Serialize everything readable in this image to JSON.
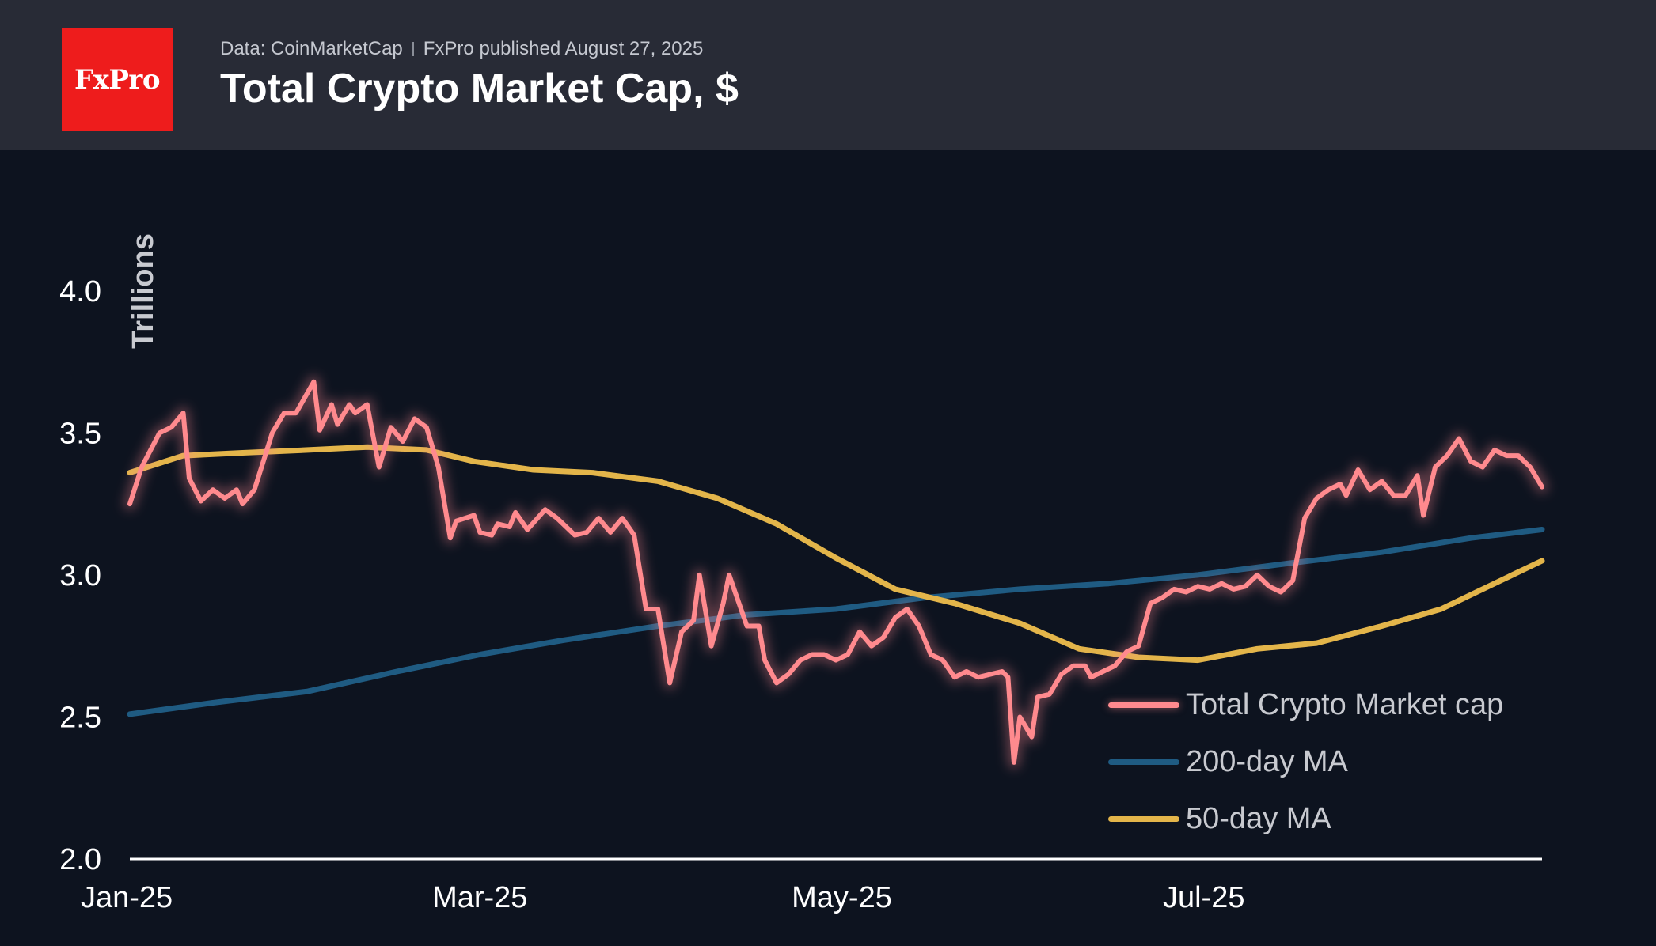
{
  "header": {
    "logo_text": "FxPro",
    "source": "Data: CoinMarketCap",
    "published": "FxPro published August 27, 2025",
    "title": "Total Crypto Market Cap, $"
  },
  "colors": {
    "market_cap": "#ff8a8e",
    "ma200": "#1f5b82",
    "ma50": "#e3b54a",
    "axis": "#ffffff",
    "logo_bg": "#ee1c1c"
  },
  "chart_data": {
    "type": "line",
    "title": "Total Crypto Market Cap, $",
    "ylabel": "Trillions",
    "xlabel": "",
    "ylim": [
      2.0,
      4.2
    ],
    "yticks": [
      2.0,
      2.5,
      3.0,
      3.5,
      4.0
    ],
    "ytick_labels": [
      "2.0",
      "2.5",
      "3.0",
      "3.5",
      "4.0"
    ],
    "xlim": [
      "2025-01-01",
      "2025-08-27"
    ],
    "xticks": [
      "2025-01-01",
      "2025-03-01",
      "2025-05-01",
      "2025-07-01"
    ],
    "xtick_labels": [
      "Jan-25",
      "Mar-25",
      "May-25",
      "Jul-25"
    ],
    "grid": false,
    "legend_position": "bottom-right",
    "series": [
      {
        "name": "Total Crypto Market cap",
        "color": "#ff8a8e",
        "points": [
          [
            "2025-01-01",
            3.25
          ],
          [
            "2025-01-03",
            3.38
          ],
          [
            "2025-01-06",
            3.5
          ],
          [
            "2025-01-08",
            3.52
          ],
          [
            "2025-01-10",
            3.57
          ],
          [
            "2025-01-11",
            3.34
          ],
          [
            "2025-01-13",
            3.26
          ],
          [
            "2025-01-15",
            3.3
          ],
          [
            "2025-01-17",
            3.27
          ],
          [
            "2025-01-19",
            3.3
          ],
          [
            "2025-01-20",
            3.25
          ],
          [
            "2025-01-22",
            3.3
          ],
          [
            "2025-01-25",
            3.5
          ],
          [
            "2025-01-27",
            3.57
          ],
          [
            "2025-01-29",
            3.57
          ],
          [
            "2025-02-01",
            3.68
          ],
          [
            "2025-02-02",
            3.51
          ],
          [
            "2025-02-04",
            3.6
          ],
          [
            "2025-02-05",
            3.53
          ],
          [
            "2025-02-07",
            3.6
          ],
          [
            "2025-02-08",
            3.57
          ],
          [
            "2025-02-10",
            3.6
          ],
          [
            "2025-02-12",
            3.38
          ],
          [
            "2025-02-14",
            3.52
          ],
          [
            "2025-02-16",
            3.47
          ],
          [
            "2025-02-18",
            3.55
          ],
          [
            "2025-02-20",
            3.52
          ],
          [
            "2025-02-22",
            3.38
          ],
          [
            "2025-02-24",
            3.13
          ],
          [
            "2025-02-25",
            3.19
          ],
          [
            "2025-02-28",
            3.21
          ],
          [
            "2025-03-01",
            3.15
          ],
          [
            "2025-03-03",
            3.14
          ],
          [
            "2025-03-04",
            3.18
          ],
          [
            "2025-03-06",
            3.17
          ],
          [
            "2025-03-07",
            3.22
          ],
          [
            "2025-03-09",
            3.16
          ],
          [
            "2025-03-12",
            3.23
          ],
          [
            "2025-03-14",
            3.2
          ],
          [
            "2025-03-17",
            3.14
          ],
          [
            "2025-03-19",
            3.15
          ],
          [
            "2025-03-21",
            3.2
          ],
          [
            "2025-03-23",
            3.15
          ],
          [
            "2025-03-25",
            3.2
          ],
          [
            "2025-03-27",
            3.14
          ],
          [
            "2025-03-29",
            2.88
          ],
          [
            "2025-03-31",
            2.88
          ],
          [
            "2025-04-02",
            2.62
          ],
          [
            "2025-04-04",
            2.8
          ],
          [
            "2025-04-06",
            2.84
          ],
          [
            "2025-04-07",
            3.0
          ],
          [
            "2025-04-09",
            2.75
          ],
          [
            "2025-04-11",
            2.9
          ],
          [
            "2025-04-12",
            3.0
          ],
          [
            "2025-04-14",
            2.88
          ],
          [
            "2025-04-15",
            2.82
          ],
          [
            "2025-04-17",
            2.82
          ],
          [
            "2025-04-18",
            2.7
          ],
          [
            "2025-04-20",
            2.62
          ],
          [
            "2025-04-22",
            2.65
          ],
          [
            "2025-04-24",
            2.7
          ],
          [
            "2025-04-26",
            2.72
          ],
          [
            "2025-04-28",
            2.72
          ],
          [
            "2025-04-30",
            2.7
          ],
          [
            "2025-05-02",
            2.72
          ],
          [
            "2025-05-04",
            2.8
          ],
          [
            "2025-05-06",
            2.75
          ],
          [
            "2025-05-08",
            2.78
          ],
          [
            "2025-05-10",
            2.85
          ],
          [
            "2025-05-12",
            2.88
          ],
          [
            "2025-05-14",
            2.82
          ],
          [
            "2025-05-16",
            2.72
          ],
          [
            "2025-05-18",
            2.7
          ],
          [
            "2025-05-20",
            2.64
          ],
          [
            "2025-05-22",
            2.66
          ],
          [
            "2025-05-24",
            2.64
          ],
          [
            "2025-05-26",
            2.65
          ],
          [
            "2025-05-28",
            2.66
          ],
          [
            "2025-05-29",
            2.64
          ],
          [
            "2025-05-30",
            2.34
          ],
          [
            "2025-05-31",
            2.5
          ],
          [
            "2025-06-02",
            2.43
          ],
          [
            "2025-06-03",
            2.57
          ],
          [
            "2025-06-05",
            2.58
          ],
          [
            "2025-06-07",
            2.65
          ],
          [
            "2025-06-09",
            2.68
          ],
          [
            "2025-06-11",
            2.68
          ],
          [
            "2025-06-12",
            2.64
          ],
          [
            "2025-06-14",
            2.66
          ],
          [
            "2025-06-16",
            2.68
          ],
          [
            "2025-06-18",
            2.73
          ],
          [
            "2025-06-20",
            2.75
          ],
          [
            "2025-06-22",
            2.9
          ],
          [
            "2025-06-24",
            2.92
          ],
          [
            "2025-06-26",
            2.95
          ],
          [
            "2025-06-28",
            2.94
          ],
          [
            "2025-06-30",
            2.96
          ],
          [
            "2025-07-02",
            2.95
          ],
          [
            "2025-07-04",
            2.97
          ],
          [
            "2025-07-06",
            2.95
          ],
          [
            "2025-07-08",
            2.96
          ],
          [
            "2025-07-10",
            3.0
          ],
          [
            "2025-07-12",
            2.96
          ],
          [
            "2025-07-14",
            2.94
          ],
          [
            "2025-07-16",
            2.98
          ],
          [
            "2025-07-18",
            3.2
          ],
          [
            "2025-07-20",
            3.27
          ],
          [
            "2025-07-22",
            3.3
          ],
          [
            "2025-07-24",
            3.32
          ],
          [
            "2025-07-25",
            3.28
          ],
          [
            "2025-07-27",
            3.37
          ],
          [
            "2025-07-29",
            3.3
          ],
          [
            "2025-07-31",
            3.33
          ],
          [
            "2025-08-02",
            3.28
          ],
          [
            "2025-08-04",
            3.28
          ],
          [
            "2025-08-06",
            3.35
          ],
          [
            "2025-08-07",
            3.21
          ],
          [
            "2025-08-09",
            3.38
          ],
          [
            "2025-08-11",
            3.42
          ],
          [
            "2025-08-13",
            3.48
          ],
          [
            "2025-08-15",
            3.4
          ],
          [
            "2025-08-17",
            3.38
          ],
          [
            "2025-08-19",
            3.44
          ],
          [
            "2025-08-21",
            3.42
          ],
          [
            "2025-08-23",
            3.42
          ],
          [
            "2025-08-25",
            3.38
          ],
          [
            "2025-08-27",
            3.31
          ]
        ]
      },
      {
        "name": "200-day MA",
        "color": "#1f5b82",
        "points": [
          [
            "2025-01-01",
            2.51
          ],
          [
            "2025-01-15",
            2.55
          ],
          [
            "2025-01-31",
            2.59
          ],
          [
            "2025-02-15",
            2.66
          ],
          [
            "2025-03-01",
            2.72
          ],
          [
            "2025-03-15",
            2.77
          ],
          [
            "2025-03-31",
            2.82
          ],
          [
            "2025-04-15",
            2.86
          ],
          [
            "2025-04-30",
            2.88
          ],
          [
            "2025-05-15",
            2.92
          ],
          [
            "2025-05-31",
            2.95
          ],
          [
            "2025-06-15",
            2.97
          ],
          [
            "2025-06-30",
            3.0
          ],
          [
            "2025-07-15",
            3.04
          ],
          [
            "2025-07-31",
            3.08
          ],
          [
            "2025-08-15",
            3.13
          ],
          [
            "2025-08-27",
            3.16
          ]
        ]
      },
      {
        "name": "50-day MA",
        "color": "#e3b54a",
        "points": [
          [
            "2025-01-01",
            3.36
          ],
          [
            "2025-01-10",
            3.42
          ],
          [
            "2025-01-20",
            3.43
          ],
          [
            "2025-01-31",
            3.44
          ],
          [
            "2025-02-10",
            3.45
          ],
          [
            "2025-02-20",
            3.44
          ],
          [
            "2025-02-28",
            3.4
          ],
          [
            "2025-03-10",
            3.37
          ],
          [
            "2025-03-20",
            3.36
          ],
          [
            "2025-03-31",
            3.33
          ],
          [
            "2025-04-10",
            3.27
          ],
          [
            "2025-04-20",
            3.18
          ],
          [
            "2025-04-30",
            3.06
          ],
          [
            "2025-05-10",
            2.95
          ],
          [
            "2025-05-20",
            2.9
          ],
          [
            "2025-05-31",
            2.83
          ],
          [
            "2025-06-10",
            2.74
          ],
          [
            "2025-06-20",
            2.71
          ],
          [
            "2025-06-30",
            2.7
          ],
          [
            "2025-07-10",
            2.74
          ],
          [
            "2025-07-20",
            2.76
          ],
          [
            "2025-07-31",
            2.82
          ],
          [
            "2025-08-10",
            2.88
          ],
          [
            "2025-08-20",
            2.98
          ],
          [
            "2025-08-27",
            3.05
          ]
        ]
      }
    ]
  }
}
